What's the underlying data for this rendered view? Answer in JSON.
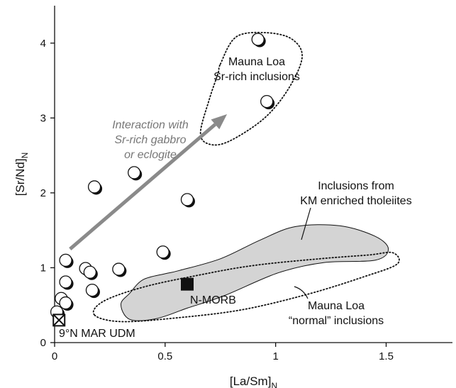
{
  "chart_data": {
    "type": "scatter",
    "xlabel": "[La/Sm]",
    "xlabel_subscript": "N",
    "ylabel": "[Sr/Nd]",
    "ylabel_subscript": "N",
    "xlim": [
      0,
      1.8
    ],
    "ylim": [
      0,
      4.5
    ],
    "x_ticks": [
      0,
      0.5,
      1,
      1.5
    ],
    "x_tick_labels": [
      "0",
      "0.5",
      "1",
      "1.5"
    ],
    "y_ticks": [
      0,
      1,
      2,
      3,
      4
    ],
    "y_tick_labels": [
      "0",
      "1",
      "2",
      "3",
      "4"
    ],
    "grid": false,
    "series": [
      {
        "marker": "circle",
        "points": [
          {
            "x": 0.92,
            "y": 4.05
          },
          {
            "x": 0.96,
            "y": 3.22
          },
          {
            "x": 0.36,
            "y": 2.27
          },
          {
            "x": 0.18,
            "y": 2.08
          },
          {
            "x": 0.6,
            "y": 1.91
          },
          {
            "x": 0.49,
            "y": 1.21
          },
          {
            "x": 0.05,
            "y": 1.1
          },
          {
            "x": 0.14,
            "y": 0.99
          },
          {
            "x": 0.16,
            "y": 0.94
          },
          {
            "x": 0.29,
            "y": 0.98
          },
          {
            "x": 0.05,
            "y": 0.81
          },
          {
            "x": 0.17,
            "y": 0.7
          },
          {
            "x": 0.03,
            "y": 0.59
          },
          {
            "x": 0.05,
            "y": 0.53
          },
          {
            "x": 0.01,
            "y": 0.41
          }
        ]
      },
      {
        "name": "N-MORB",
        "marker": "filled-square",
        "points": [
          {
            "x": 0.6,
            "y": 0.78
          }
        ]
      },
      {
        "name": "9°N MAR UDM",
        "marker": "crossed-square",
        "points": [
          {
            "x": 0.02,
            "y": 0.3
          }
        ]
      }
    ],
    "regions": [
      {
        "label_lines": [
          "Mauna Loa",
          "Sr-rich inclusions"
        ],
        "style": "dotted-outline",
        "outline": [
          [
            0.75,
            3.72
          ],
          [
            0.82,
            4.08
          ],
          [
            0.95,
            4.14
          ],
          [
            1.07,
            4.06
          ],
          [
            1.12,
            3.82
          ],
          [
            1.06,
            3.4
          ],
          [
            0.95,
            3.0
          ],
          [
            0.79,
            2.69
          ],
          [
            0.7,
            2.65
          ],
          [
            0.66,
            2.8
          ],
          [
            0.7,
            3.25
          ],
          [
            0.74,
            3.6
          ]
        ]
      },
      {
        "label_lines": [
          "Inclusions from",
          "KM enriched tholeiites"
        ],
        "style": "gray-fill",
        "outline": [
          [
            0.56,
            0.96
          ],
          [
            0.75,
            1.12
          ],
          [
            0.93,
            1.37
          ],
          [
            1.09,
            1.55
          ],
          [
            1.29,
            1.56
          ],
          [
            1.45,
            1.42
          ],
          [
            1.51,
            1.25
          ],
          [
            1.45,
            1.1
          ],
          [
            1.22,
            1.07
          ],
          [
            1.01,
            0.93
          ],
          [
            0.77,
            0.63
          ],
          [
            0.6,
            0.46
          ],
          [
            0.46,
            0.32
          ],
          [
            0.34,
            0.31
          ],
          [
            0.3,
            0.51
          ],
          [
            0.34,
            0.66
          ],
          [
            0.4,
            0.84
          ],
          [
            0.5,
            0.92
          ]
        ]
      },
      {
        "label_lines": [
          "Mauna Loa",
          "“normal” inclusions"
        ],
        "style": "dotted-outline",
        "outline": [
          [
            0.18,
            0.37
          ],
          [
            0.22,
            0.55
          ],
          [
            0.4,
            0.74
          ],
          [
            0.65,
            0.9
          ],
          [
            0.9,
            1.03
          ],
          [
            1.2,
            1.12
          ],
          [
            1.42,
            1.17
          ],
          [
            1.53,
            1.2
          ],
          [
            1.55,
            1.05
          ],
          [
            1.4,
            0.88
          ],
          [
            1.15,
            0.65
          ],
          [
            0.85,
            0.44
          ],
          [
            0.55,
            0.33
          ],
          [
            0.3,
            0.28
          ]
        ]
      }
    ],
    "arrow": {
      "from": {
        "x": 0.07,
        "y": 1.25
      },
      "to": {
        "x": 0.78,
        "y": 3.05
      },
      "label_lines": [
        "Interaction with",
        "Sr-rich gabbro",
        "or eclogite"
      ],
      "color": "#8a8a8a"
    },
    "annotations": [
      "N-MORB",
      "9°N MAR UDM"
    ],
    "colors": {
      "region_fill": "#d4d4d4",
      "arrow": "#8a8a8a",
      "marker_edge": "#111111"
    }
  }
}
